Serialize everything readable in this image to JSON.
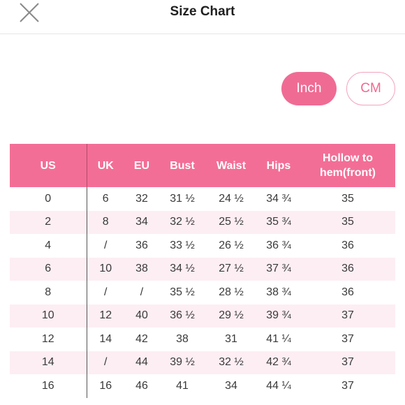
{
  "header": {
    "title": "Size Chart"
  },
  "units": {
    "inch": "Inch",
    "cm": "CM"
  },
  "table": {
    "columns": [
      "US",
      "UK",
      "EU",
      "Bust",
      "Waist",
      "Hips",
      "Hollow to hem(front)"
    ],
    "rows": [
      [
        "0",
        "6",
        "32",
        "31 ½",
        "24 ½",
        "34 ¾",
        "35"
      ],
      [
        "2",
        "8",
        "34",
        "32 ½",
        "25 ½",
        "35 ¾",
        "35"
      ],
      [
        "4",
        "/",
        "36",
        "33 ½",
        "26 ½",
        "36 ¾",
        "36"
      ],
      [
        "6",
        "10",
        "38",
        "34 ½",
        "27 ½",
        "37 ¾",
        "36"
      ],
      [
        "8",
        "/",
        "/",
        "35 ½",
        "28 ½",
        "38 ¾",
        "36"
      ],
      [
        "10",
        "12",
        "40",
        "36 ½",
        "29 ½",
        "39 ¾",
        "37"
      ],
      [
        "12",
        "14",
        "42",
        "38",
        "31",
        "41 ¼",
        "37"
      ],
      [
        "14",
        "/",
        "44",
        "39 ½",
        "32 ½",
        "42 ¾",
        "37"
      ],
      [
        "16",
        "16",
        "46",
        "41",
        "34",
        "44 ¼",
        "37"
      ]
    ]
  }
}
